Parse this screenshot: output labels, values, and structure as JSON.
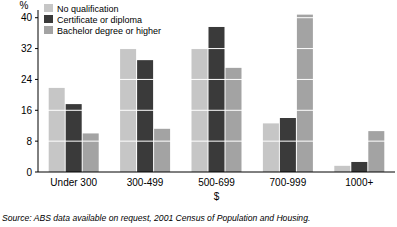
{
  "chart_data": {
    "type": "bar",
    "x_label": "$",
    "y_label": "%",
    "categories": [
      "Under 300",
      "300-499",
      "500-699",
      "700-999",
      "1000+"
    ],
    "series": [
      {
        "name": "No qualification",
        "color": "#c6c6c6",
        "values": [
          21.8,
          32.0,
          32.0,
          12.6,
          1.6
        ]
      },
      {
        "name": "Certificate or diploma",
        "color": "#3a3a3a",
        "values": [
          17.6,
          29.0,
          37.6,
          14.0,
          2.6
        ]
      },
      {
        "name": "Bachelor degree or higher",
        "color": "#a3a3a3",
        "values": [
          10.0,
          11.2,
          27.0,
          40.8,
          10.6
        ]
      }
    ],
    "ylim": [
      0,
      42
    ],
    "yticks": [
      0,
      8,
      16,
      24,
      32,
      40
    ],
    "grid": true,
    "legend": "upper left",
    "annotations": [
      "Source: ABS data available on request, 2001 Census of Population and Housing."
    ]
  }
}
